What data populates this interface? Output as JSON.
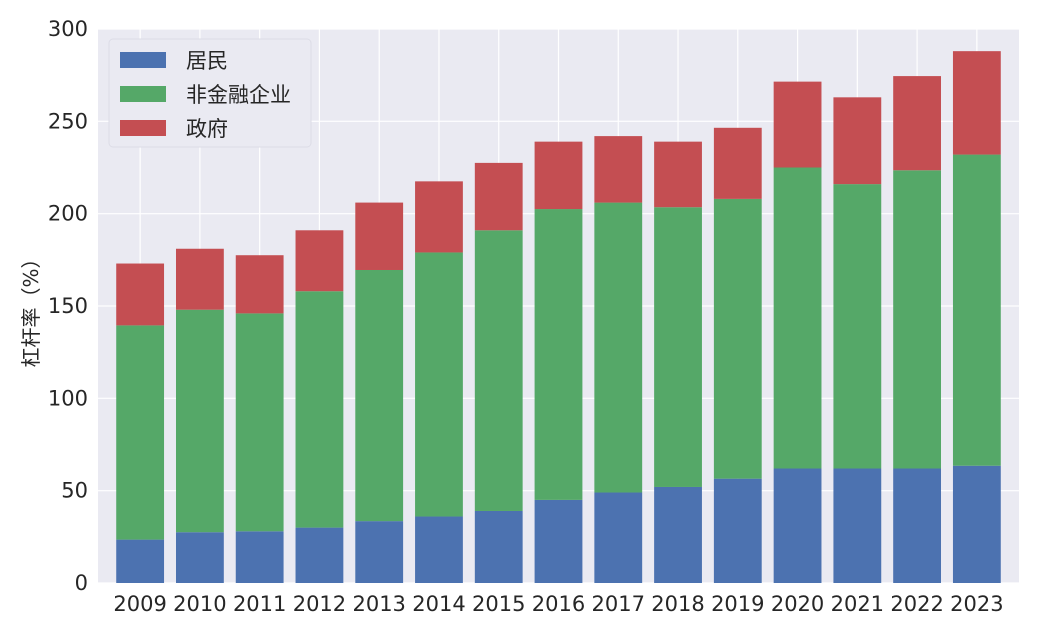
{
  "chart_data": {
    "type": "bar",
    "stacked": true,
    "categories": [
      "2009",
      "2010",
      "2011",
      "2012",
      "2013",
      "2014",
      "2015",
      "2016",
      "2017",
      "2018",
      "2019",
      "2020",
      "2021",
      "2022",
      "2023"
    ],
    "series": [
      {
        "name": "居民",
        "color": "#4C72B0",
        "values": [
          23.5,
          27.5,
          28.0,
          30.0,
          33.5,
          36.0,
          39.0,
          45.0,
          49.0,
          52.0,
          56.5,
          62.0,
          62.0,
          62.0,
          63.5
        ]
      },
      {
        "name": "非金融企业",
        "color": "#55A868",
        "values": [
          116.0,
          120.5,
          118.0,
          128.0,
          136.0,
          143.0,
          152.0,
          157.5,
          157.0,
          151.5,
          151.5,
          163.0,
          154.0,
          161.5,
          168.5
        ]
      },
      {
        "name": "政府",
        "color": "#C44E52",
        "values": [
          33.5,
          33.0,
          31.5,
          33.0,
          36.5,
          38.5,
          36.5,
          36.5,
          36.0,
          35.5,
          38.5,
          46.5,
          47.0,
          51.0,
          56.0
        ]
      }
    ],
    "title": "",
    "xlabel": "",
    "ylabel": "杠杆率（%）",
    "ylim": [
      0,
      300
    ],
    "yticks": [
      "0",
      "50",
      "100",
      "150",
      "200",
      "250",
      "300"
    ],
    "grid": true,
    "legend_position": "top-left",
    "style": {
      "plot_background": "#EAEAF2",
      "grid_color": "#ffffff"
    }
  }
}
